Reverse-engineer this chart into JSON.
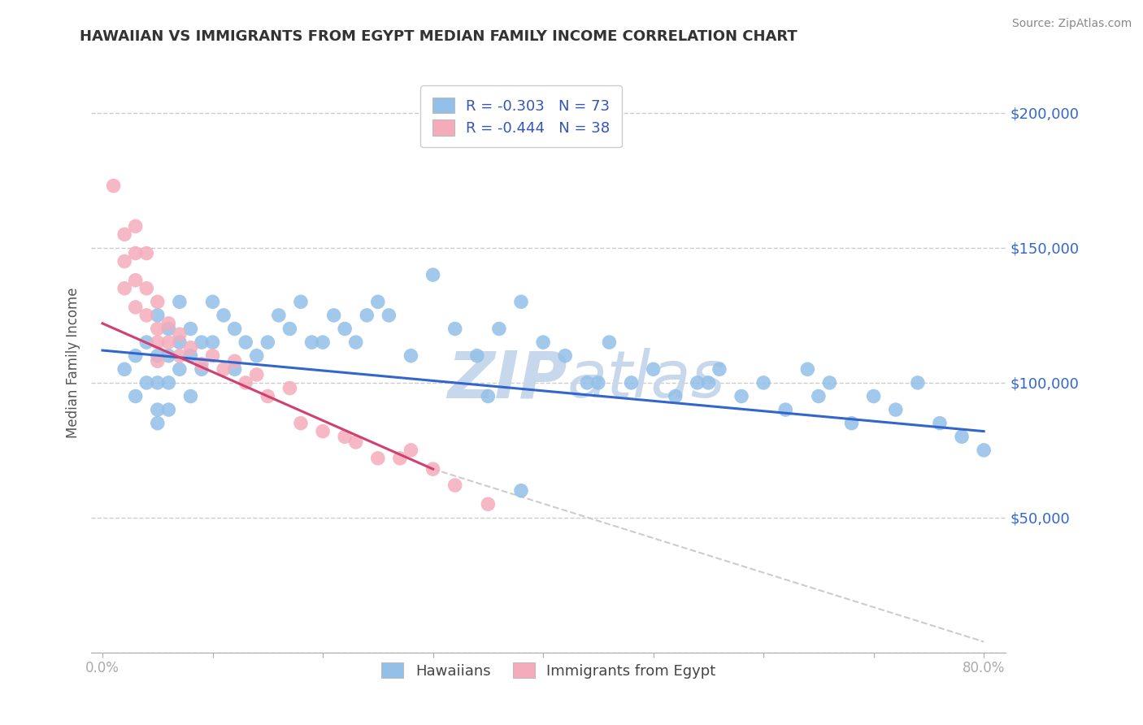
{
  "title": "HAWAIIAN VS IMMIGRANTS FROM EGYPT MEDIAN FAMILY INCOME CORRELATION CHART",
  "source": "Source: ZipAtlas.com",
  "ylabel": "Median Family Income",
  "xlim": [
    -0.01,
    0.82
  ],
  "ylim": [
    0,
    215000
  ],
  "yticks": [
    0,
    50000,
    100000,
    150000,
    200000
  ],
  "ytick_labels": [
    "",
    "$50,000",
    "$100,000",
    "$150,000",
    "$200,000"
  ],
  "xticks": [
    0.0,
    0.1,
    0.2,
    0.3,
    0.4,
    0.5,
    0.6,
    0.7,
    0.8
  ],
  "xtick_labels": [
    "0.0%",
    "",
    "",
    "",
    "",
    "",
    "",
    "",
    "80.0%"
  ],
  "title_color": "#333333",
  "axis_color": "#aaaaaa",
  "grid_color": "#cccccc",
  "blue_color": "#92C0E8",
  "pink_color": "#F4ACBA",
  "trend_blue": "#3366CC",
  "trend_pink": "#D04070",
  "trend_gray_color": "#CCCCCC",
  "watermark_color": "#C8D8EC",
  "legend_R_color": "#3355BB",
  "hawaiians_x": [
    0.02,
    0.03,
    0.03,
    0.04,
    0.04,
    0.05,
    0.05,
    0.05,
    0.05,
    0.05,
    0.06,
    0.06,
    0.06,
    0.06,
    0.07,
    0.07,
    0.07,
    0.08,
    0.08,
    0.08,
    0.09,
    0.09,
    0.1,
    0.1,
    0.11,
    0.12,
    0.12,
    0.13,
    0.14,
    0.15,
    0.16,
    0.17,
    0.18,
    0.19,
    0.2,
    0.21,
    0.22,
    0.23,
    0.24,
    0.25,
    0.26,
    0.28,
    0.3,
    0.32,
    0.34,
    0.36,
    0.38,
    0.4,
    0.42,
    0.44,
    0.46,
    0.48,
    0.5,
    0.52,
    0.54,
    0.56,
    0.58,
    0.6,
    0.62,
    0.64,
    0.66,
    0.68,
    0.7,
    0.72,
    0.74,
    0.76,
    0.78,
    0.8,
    0.35,
    0.45,
    0.55,
    0.65,
    0.38
  ],
  "hawaiians_y": [
    105000,
    110000,
    95000,
    115000,
    100000,
    125000,
    110000,
    100000,
    90000,
    85000,
    120000,
    110000,
    100000,
    90000,
    130000,
    115000,
    105000,
    120000,
    110000,
    95000,
    115000,
    105000,
    130000,
    115000,
    125000,
    120000,
    105000,
    115000,
    110000,
    115000,
    125000,
    120000,
    130000,
    115000,
    115000,
    125000,
    120000,
    115000,
    125000,
    130000,
    125000,
    110000,
    140000,
    120000,
    110000,
    120000,
    130000,
    115000,
    110000,
    100000,
    115000,
    100000,
    105000,
    95000,
    100000,
    105000,
    95000,
    100000,
    90000,
    105000,
    100000,
    85000,
    95000,
    90000,
    100000,
    85000,
    80000,
    75000,
    95000,
    100000,
    100000,
    95000,
    60000
  ],
  "egypt_x": [
    0.01,
    0.02,
    0.02,
    0.02,
    0.03,
    0.03,
    0.03,
    0.03,
    0.04,
    0.04,
    0.04,
    0.05,
    0.05,
    0.05,
    0.05,
    0.06,
    0.06,
    0.07,
    0.07,
    0.08,
    0.09,
    0.1,
    0.11,
    0.12,
    0.13,
    0.14,
    0.15,
    0.17,
    0.18,
    0.2,
    0.22,
    0.23,
    0.25,
    0.27,
    0.28,
    0.3,
    0.32,
    0.35
  ],
  "egypt_y": [
    173000,
    155000,
    145000,
    135000,
    158000,
    148000,
    138000,
    128000,
    148000,
    135000,
    125000,
    130000,
    120000,
    115000,
    108000,
    122000,
    115000,
    118000,
    110000,
    113000,
    107000,
    110000,
    105000,
    108000,
    100000,
    103000,
    95000,
    98000,
    85000,
    82000,
    80000,
    78000,
    72000,
    72000,
    75000,
    68000,
    62000,
    55000
  ],
  "R_hawaiians": "-0.303",
  "N_hawaiians": "73",
  "R_egypt": "-0.444",
  "N_egypt": "38",
  "legend_label_blue": "Hawaiians",
  "legend_label_pink": "Immigrants from Egypt",
  "trend_blue_x0": 0.0,
  "trend_blue_x1": 0.8,
  "trend_blue_y0": 112000,
  "trend_blue_y1": 82000,
  "trend_pink_x0": 0.0,
  "trend_pink_x1": 0.3,
  "trend_pink_y0": 122000,
  "trend_pink_y1": 68000,
  "trend_gray_x0": 0.3,
  "trend_gray_x1": 0.8,
  "trend_gray_y0": 68000,
  "trend_gray_y1": 4000
}
